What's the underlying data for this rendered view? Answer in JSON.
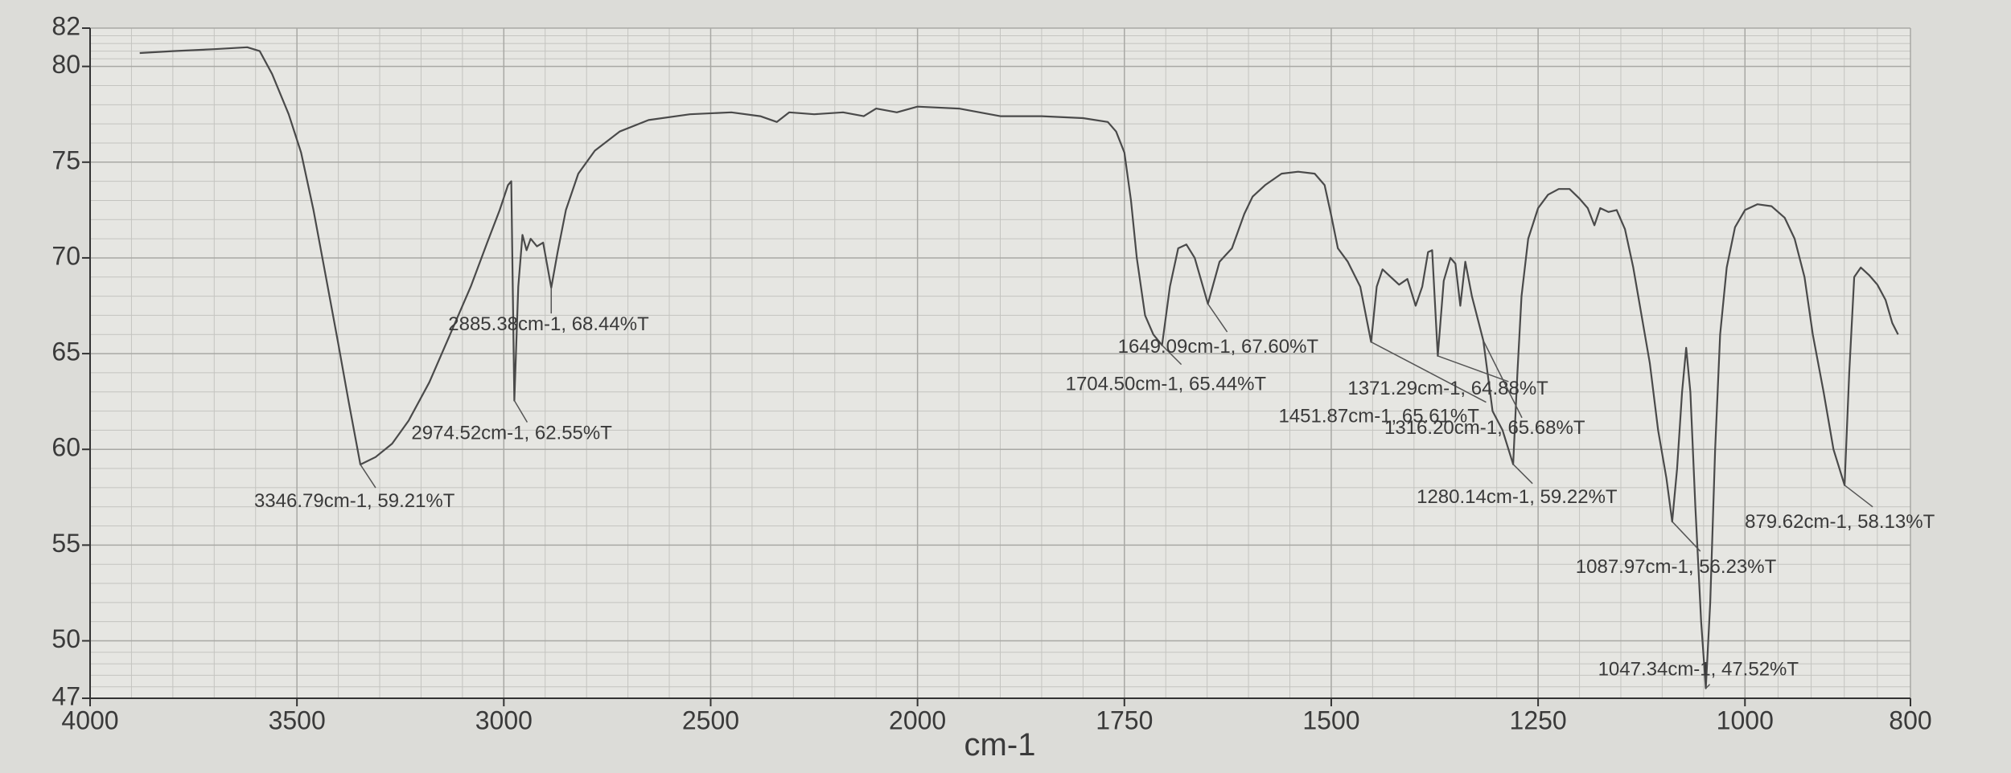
{
  "chart_data": {
    "type": "line",
    "x_label": "cm-1",
    "xlim": [
      4000,
      800
    ],
    "xticks": [
      4000,
      3500,
      3000,
      2500,
      2000,
      1750,
      1500,
      1250,
      1000,
      800
    ],
    "ylim": [
      47,
      82
    ],
    "yticks": [
      47,
      50,
      55,
      60,
      65,
      70,
      75,
      80,
      82
    ],
    "grid": true,
    "x": [
      3880,
      3800,
      3700,
      3620,
      3590,
      3560,
      3520,
      3490,
      3460,
      3430,
      3400,
      3375,
      3346.79,
      3310,
      3270,
      3230,
      3180,
      3130,
      3080,
      3040,
      3010,
      2990,
      2982,
      2974.52,
      2965,
      2955,
      2945,
      2935,
      2920,
      2905,
      2885.38,
      2870,
      2850,
      2820,
      2780,
      2720,
      2650,
      2550,
      2450,
      2380,
      2340,
      2310,
      2250,
      2180,
      2130,
      2100,
      2050,
      2000,
      1950,
      1900,
      1850,
      1800,
      1770,
      1760,
      1750,
      1742,
      1735,
      1725,
      1715,
      1704.5,
      1695,
      1685,
      1675,
      1665,
      1649.09,
      1635,
      1620,
      1605,
      1595,
      1580,
      1560,
      1540,
      1520,
      1508,
      1500,
      1492,
      1480,
      1465,
      1451.87,
      1445,
      1438,
      1428,
      1418,
      1408,
      1398,
      1390,
      1383,
      1378,
      1371.29,
      1364,
      1356,
      1350,
      1344,
      1338,
      1330,
      1316.2,
      1305,
      1293,
      1280.14,
      1275,
      1270,
      1262,
      1250,
      1238,
      1225,
      1212,
      1200,
      1190,
      1182,
      1175,
      1165,
      1155,
      1145,
      1135,
      1125,
      1115,
      1105,
      1095,
      1087.97,
      1082,
      1076,
      1071,
      1066,
      1060,
      1053,
      1047.34,
      1042,
      1036,
      1030,
      1022,
      1012,
      1000,
      985,
      968,
      952,
      940,
      928,
      918,
      905,
      893,
      879.62,
      874,
      868,
      860,
      850,
      840,
      830,
      822,
      815
    ],
    "series": [
      {
        "color": "#4a4a4a",
        "values": [
          80.7,
          80.8,
          80.9,
          81.0,
          80.8,
          79.6,
          77.5,
          75.5,
          72.5,
          69,
          65.5,
          62.5,
          59.21,
          59.6,
          60.3,
          61.5,
          63.5,
          66,
          68.5,
          70.8,
          72.5,
          73.8,
          74.0,
          62.55,
          68.5,
          71.2,
          70.4,
          71,
          70.6,
          70.8,
          68.44,
          70.3,
          72.5,
          74.4,
          75.6,
          76.6,
          77.2,
          77.5,
          77.6,
          77.4,
          77.1,
          77.6,
          77.5,
          77.6,
          77.4,
          77.8,
          77.6,
          77.9,
          77.8,
          77.4,
          77.4,
          77.3,
          77.1,
          76.6,
          75.5,
          73,
          70,
          67,
          66,
          65.44,
          68.5,
          70.5,
          70.7,
          70.0,
          67.6,
          69.8,
          70.5,
          72.3,
          73.2,
          73.8,
          74.4,
          74.5,
          74.4,
          73.8,
          72.2,
          70.5,
          69.8,
          68.5,
          65.61,
          68.5,
          69.4,
          69,
          68.6,
          68.9,
          67.5,
          68.5,
          70.3,
          70.4,
          64.88,
          68.8,
          70.0,
          69.7,
          67.5,
          69.8,
          68,
          65.68,
          62,
          61,
          59.22,
          64,
          68,
          71,
          72.6,
          73.3,
          73.6,
          73.6,
          73.1,
          72.6,
          71.7,
          72.6,
          72.4,
          72.5,
          71.5,
          69.5,
          67,
          64.5,
          61,
          58.5,
          56.23,
          59,
          63,
          65.3,
          63,
          57,
          51,
          47.52,
          52,
          60,
          66,
          69.5,
          71.6,
          72.5,
          72.8,
          72.7,
          72.1,
          71,
          69,
          66,
          63,
          60,
          58.13,
          64,
          69,
          69.5,
          69.1,
          68.6,
          67.8,
          66.6,
          66
        ]
      }
    ],
    "annotations": [
      {
        "text": "3346.79cm-1, 59.21%T",
        "x": 3346.79,
        "y": 59.21
      },
      {
        "text": "2974.52cm-1, 62.55%T",
        "x": 2974.52,
        "y": 62.55
      },
      {
        "text": "2885.38cm-1, 68.44%T",
        "x": 2885.38,
        "y": 68.44
      },
      {
        "text": "1704.50cm-1, 65.44%T",
        "x": 1704.5,
        "y": 65.44
      },
      {
        "text": "1649.09cm-1, 67.60%T",
        "x": 1649.09,
        "y": 67.6
      },
      {
        "text": "1371.29cm-1, 64.88%T",
        "x": 1371.29,
        "y": 64.88
      },
      {
        "text": "1451.87cm-1, 65.61%T",
        "x": 1451.87,
        "y": 65.61
      },
      {
        "text": "1316.20cm-1, 65.68%T",
        "x": 1316.2,
        "y": 65.68
      },
      {
        "text": "1280.14cm-1, 59.22%T",
        "x": 1280.14,
        "y": 59.22
      },
      {
        "text": "879.62cm-1, 58.13%T",
        "x": 879.62,
        "y": 58.13
      },
      {
        "text": "1087.97cm-1, 56.23%T",
        "x": 1087.97,
        "y": 56.23
      },
      {
        "text": "1047.34cm-1, 47.52%T",
        "x": 1047.34,
        "y": 47.52
      }
    ]
  }
}
